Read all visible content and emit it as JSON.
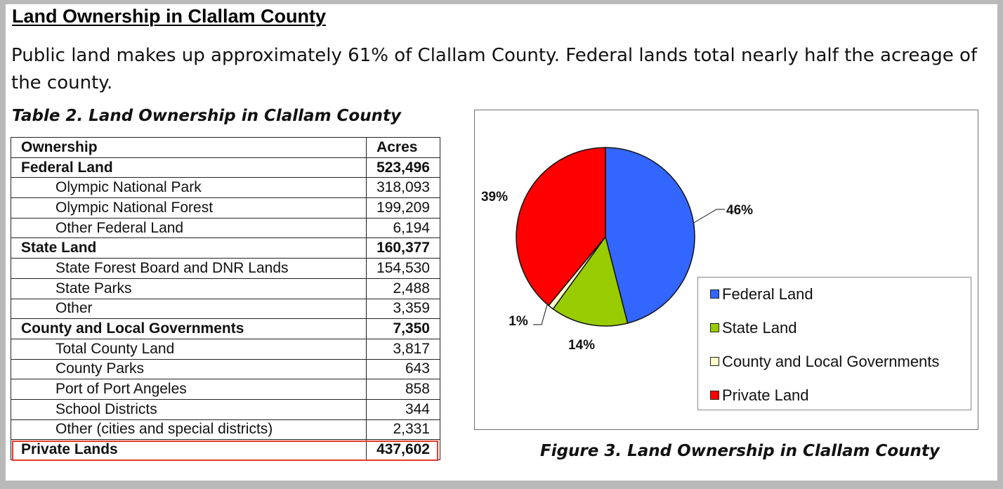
{
  "heading": "Land Ownership in Clallam County",
  "intro": "Public land makes up approximately 61% of Clallam County. Federal lands total nearly half the acreage of the county.",
  "table_caption": "Table 2. Land Ownership in Clallam County",
  "table": {
    "headers": [
      "Ownership",
      "Acres"
    ],
    "rows": [
      {
        "label": "Federal Land",
        "value": "523,496",
        "bold": true
      },
      {
        "label": "Olympic National Park",
        "value": "318,093",
        "bold": false
      },
      {
        "label": "Olympic National Forest",
        "value": "199,209",
        "bold": false
      },
      {
        "label": "Other Federal Land",
        "value": "6,194",
        "bold": false
      },
      {
        "label": "State Land",
        "value": "160,377",
        "bold": true
      },
      {
        "label": "State Forest Board and DNR Lands",
        "value": "154,530",
        "bold": false
      },
      {
        "label": "State Parks",
        "value": "2,488",
        "bold": false
      },
      {
        "label": "Other",
        "value": "3,359",
        "bold": false
      },
      {
        "label": "County and Local Governments",
        "value": "7,350",
        "bold": true
      },
      {
        "label": "Total County Land",
        "value": "3,817",
        "bold": false
      },
      {
        "label": "County Parks",
        "value": "643",
        "bold": false
      },
      {
        "label": "Port of Port Angeles",
        "value": "858",
        "bold": false
      },
      {
        "label": "School Districts",
        "value": "344",
        "bold": false
      },
      {
        "label": "Other (cities and special districts)",
        "value": "2,331",
        "bold": false
      },
      {
        "label": "Private Lands",
        "value": "437,602",
        "bold": true
      }
    ]
  },
  "highlight_color": "#e23b2e",
  "figure_caption": "Figure 3. Land Ownership in Clallam County",
  "chart_data": {
    "type": "pie",
    "title": "",
    "legend_position": "right",
    "slices": [
      {
        "name": "Federal Land",
        "value": 46,
        "label": "46%",
        "color": "#3366ff"
      },
      {
        "name": "State Land",
        "value": 14,
        "label": "14%",
        "color": "#99cc00"
      },
      {
        "name": "County and Local Governments",
        "value": 1,
        "label": "1%",
        "color": "#ffffcc"
      },
      {
        "name": "Private Land",
        "value": 39,
        "label": "39%",
        "color": "#ff0000"
      }
    ]
  }
}
